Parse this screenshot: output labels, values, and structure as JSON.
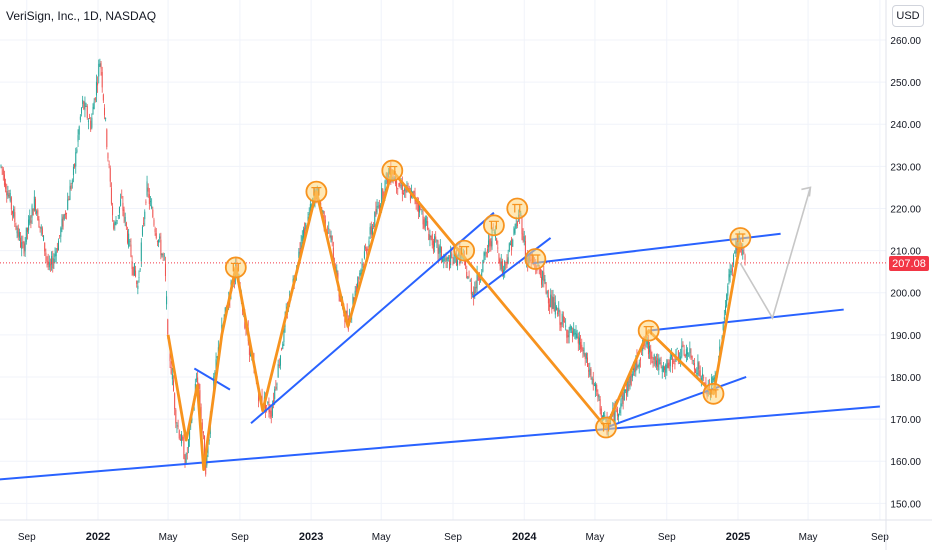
{
  "header": {
    "title": "VeriSign, Inc., 1D, NASDAQ",
    "currency": "USD"
  },
  "colors": {
    "up": "#26a69a",
    "down": "#ef5350",
    "trendline": "#2962ff",
    "zigzag": "#f7931e",
    "marker": "#f7931e",
    "projection": "#c7c7c7",
    "last_price": "#f23645"
  },
  "chart_data": {
    "type": "candlestick",
    "symbol": "VeriSign, Inc., 1D, NASDAQ",
    "last_price": 207.08,
    "last_price_label": "207.08",
    "ylim": [
      147,
      263
    ],
    "y_ticks": [
      {
        "value": 150,
        "label": "150.00"
      },
      {
        "value": 160,
        "label": "160.00"
      },
      {
        "value": 170,
        "label": "170.00"
      },
      {
        "value": 180,
        "label": "180.00"
      },
      {
        "value": 190,
        "label": "190.00"
      },
      {
        "value": 200,
        "label": "200.00"
      },
      {
        "value": 210,
        "label": "210.00"
      },
      {
        "value": 220,
        "label": "220.00"
      },
      {
        "value": 230,
        "label": "230.00"
      },
      {
        "value": 240,
        "label": "240.00"
      },
      {
        "value": 250,
        "label": "250.00"
      },
      {
        "value": 260,
        "label": "260.00"
      }
    ],
    "x_ticks": [
      {
        "label": "Sep",
        "date": "2021-09-01",
        "bold": false
      },
      {
        "label": "2022",
        "date": "2022-01-01",
        "bold": true
      },
      {
        "label": "May",
        "date": "2022-05-01",
        "bold": false
      },
      {
        "label": "Sep",
        "date": "2022-09-01",
        "bold": false
      },
      {
        "label": "2023",
        "date": "2023-01-01",
        "bold": true
      },
      {
        "label": "May",
        "date": "2023-05-01",
        "bold": false
      },
      {
        "label": "Sep",
        "date": "2023-09-01",
        "bold": false
      },
      {
        "label": "2024",
        "date": "2024-01-01",
        "bold": true
      },
      {
        "label": "May",
        "date": "2024-05-01",
        "bold": false
      },
      {
        "label": "Sep",
        "date": "2024-09-01",
        "bold": false
      },
      {
        "label": "2025",
        "date": "2025-01-01",
        "bold": true
      },
      {
        "label": "May",
        "date": "2025-05-01",
        "bold": false
      },
      {
        "label": "Sep",
        "date": "2025-09-01",
        "bold": false
      }
    ],
    "price_path": [
      [
        "2021-07-20",
        230
      ],
      [
        "2021-08-10",
        218
      ],
      [
        "2021-08-25",
        210
      ],
      [
        "2021-09-15",
        222
      ],
      [
        "2021-10-10",
        205
      ],
      [
        "2021-10-25",
        212
      ],
      [
        "2021-11-20",
        228
      ],
      [
        "2021-12-05",
        245
      ],
      [
        "2021-12-20",
        240
      ],
      [
        "2022-01-05",
        256
      ],
      [
        "2022-01-15",
        238
      ],
      [
        "2022-01-28",
        215
      ],
      [
        "2022-02-10",
        222
      ],
      [
        "2022-02-25",
        210
      ],
      [
        "2022-03-10",
        201
      ],
      [
        "2022-03-25",
        225
      ],
      [
        "2022-04-10",
        215
      ],
      [
        "2022-04-25",
        207
      ],
      [
        "2022-05-02",
        188
      ],
      [
        "2022-05-15",
        170
      ],
      [
        "2022-06-01",
        160
      ],
      [
        "2022-06-20",
        181
      ],
      [
        "2022-07-05",
        158
      ],
      [
        "2022-07-15",
        175
      ],
      [
        "2022-07-28",
        188
      ],
      [
        "2022-08-15",
        200
      ],
      [
        "2022-08-25",
        206
      ],
      [
        "2022-09-20",
        185
      ],
      [
        "2022-10-05",
        175
      ],
      [
        "2022-10-25",
        172
      ],
      [
        "2022-11-20",
        195
      ],
      [
        "2022-12-15",
        212
      ],
      [
        "2023-01-10",
        224
      ],
      [
        "2023-02-05",
        212
      ],
      [
        "2023-02-20",
        198
      ],
      [
        "2023-03-05",
        193
      ],
      [
        "2023-03-25",
        205
      ],
      [
        "2023-04-25",
        220
      ],
      [
        "2023-05-15",
        229
      ],
      [
        "2023-06-05",
        225
      ],
      [
        "2023-07-01",
        222
      ],
      [
        "2023-07-25",
        213
      ],
      [
        "2023-08-20",
        207
      ],
      [
        "2023-09-15",
        209
      ],
      [
        "2023-10-05",
        200
      ],
      [
        "2023-10-25",
        208
      ],
      [
        "2023-11-10",
        215
      ],
      [
        "2023-11-25",
        205
      ],
      [
        "2023-12-10",
        212
      ],
      [
        "2023-12-25",
        219
      ],
      [
        "2024-01-05",
        208
      ],
      [
        "2024-01-25",
        206
      ],
      [
        "2024-02-15",
        198
      ],
      [
        "2024-03-10",
        192
      ],
      [
        "2024-04-05",
        188
      ],
      [
        "2024-04-25",
        180
      ],
      [
        "2024-05-20",
        168
      ],
      [
        "2024-06-15",
        174
      ],
      [
        "2024-07-05",
        181
      ],
      [
        "2024-07-25",
        188
      ],
      [
        "2024-08-05",
        186
      ],
      [
        "2024-08-25",
        181
      ],
      [
        "2024-09-15",
        185
      ],
      [
        "2024-10-05",
        186
      ],
      [
        "2024-10-25",
        182
      ],
      [
        "2024-11-10",
        176
      ],
      [
        "2024-11-25",
        180
      ],
      [
        "2024-12-15",
        202
      ],
      [
        "2025-01-01",
        213
      ],
      [
        "2025-01-15",
        207.08
      ]
    ],
    "zigzag": [
      [
        "2022-05-01",
        190
      ],
      [
        "2022-06-01",
        165
      ],
      [
        "2022-06-20",
        178
      ],
      [
        "2022-07-01",
        158
      ],
      [
        "2022-08-01",
        190
      ],
      [
        "2022-08-25",
        206
      ],
      [
        "2022-10-10",
        172
      ],
      [
        "2023-01-10",
        224
      ],
      [
        "2023-03-05",
        192
      ],
      [
        "2023-05-20",
        229
      ],
      [
        "2024-05-20",
        168
      ],
      [
        "2024-08-01",
        191
      ],
      [
        "2024-11-20",
        176
      ],
      [
        "2025-01-05",
        212
      ]
    ],
    "markers": [
      [
        "2022-08-25",
        206
      ],
      [
        "2023-01-10",
        224
      ],
      [
        "2023-05-20",
        229
      ],
      [
        "2023-09-20",
        210
      ],
      [
        "2023-11-10",
        216
      ],
      [
        "2023-12-20",
        220
      ],
      [
        "2024-01-20",
        208
      ],
      [
        "2024-05-20",
        168
      ],
      [
        "2024-08-01",
        191
      ],
      [
        "2024-11-20",
        176
      ],
      [
        "2025-01-05",
        213
      ]
    ],
    "trendlines": [
      {
        "from": [
          "2021-07-01",
          155.5
        ],
        "to": [
          "2025-09-01",
          173
        ]
      },
      {
        "from": [
          "2022-06-15",
          182
        ],
        "to": [
          "2022-08-15",
          177
        ]
      },
      {
        "from": [
          "2022-09-20",
          169
        ],
        "to": [
          "2023-11-10",
          219
        ]
      },
      {
        "from": [
          "2023-10-05",
          199
        ],
        "to": [
          "2024-02-15",
          213
        ]
      },
      {
        "from": [
          "2024-01-15",
          207
        ],
        "to": [
          "2025-03-15",
          214
        ]
      },
      {
        "from": [
          "2024-05-20",
          168
        ],
        "to": [
          "2025-01-15",
          180
        ]
      },
      {
        "from": [
          "2024-08-01",
          191
        ],
        "to": [
          "2025-07-01",
          196
        ]
      }
    ],
    "projection": [
      [
        "2025-01-05",
        207
      ],
      [
        "2025-03-01",
        194
      ],
      [
        "2025-05-05",
        225
      ]
    ]
  }
}
